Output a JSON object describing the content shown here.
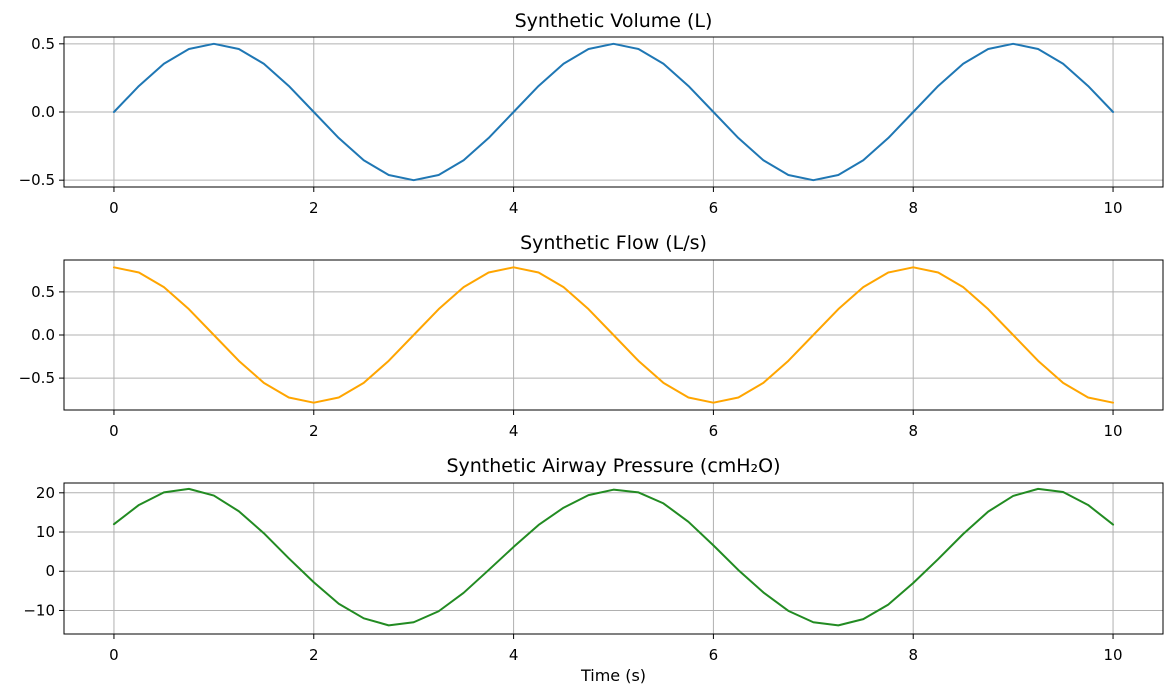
{
  "chart_data": [
    {
      "type": "line",
      "title": "Synthetic Volume (L)",
      "xlabel": "",
      "ylabel": "",
      "xlim": [
        -0.5,
        10.5
      ],
      "ylim": [
        -0.55,
        0.55
      ],
      "xticks": [
        0,
        2,
        4,
        6,
        8,
        10
      ],
      "yticks": [
        -0.5,
        0.0,
        0.5
      ],
      "ytick_labels": [
        "−0.5",
        "0.0",
        "0.5"
      ],
      "grid": true,
      "color": "#1f77b4",
      "series": [
        {
          "x": [
            0,
            0.25,
            0.5,
            0.75,
            1,
            1.25,
            1.5,
            1.75,
            2,
            2.25,
            2.5,
            2.75,
            3,
            3.25,
            3.5,
            3.75,
            4,
            4.25,
            4.5,
            4.75,
            5,
            5.25,
            5.5,
            5.75,
            6,
            6.25,
            6.5,
            6.75,
            7,
            7.25,
            7.5,
            7.75,
            8,
            8.25,
            8.5,
            8.75,
            9,
            9.25,
            9.5,
            9.75,
            10
          ],
          "y": [
            0.0,
            0.191,
            0.354,
            0.462,
            0.5,
            0.462,
            0.354,
            0.191,
            0.0,
            -0.191,
            -0.354,
            -0.462,
            -0.5,
            -0.462,
            -0.354,
            -0.191,
            0.0,
            0.191,
            0.354,
            0.462,
            0.5,
            0.462,
            0.354,
            0.191,
            0.0,
            -0.191,
            -0.354,
            -0.462,
            -0.5,
            -0.462,
            -0.354,
            -0.191,
            0.0,
            0.191,
            0.354,
            0.462,
            0.5,
            0.462,
            0.354,
            0.191,
            0.0
          ]
        }
      ]
    },
    {
      "type": "line",
      "title": "Synthetic Flow (L/s)",
      "xlabel": "",
      "ylabel": "",
      "xlim": [
        -0.5,
        10.5
      ],
      "ylim": [
        -0.87,
        0.87
      ],
      "xticks": [
        0,
        2,
        4,
        6,
        8,
        10
      ],
      "yticks": [
        -0.5,
        0.0,
        0.5
      ],
      "ytick_labels": [
        "−0.5",
        "0.0",
        "0.5"
      ],
      "grid": true,
      "color": "#ffa500",
      "series": [
        {
          "x": [
            0,
            0.25,
            0.5,
            0.75,
            1,
            1.25,
            1.5,
            1.75,
            2,
            2.25,
            2.5,
            2.75,
            3,
            3.25,
            3.5,
            3.75,
            4,
            4.25,
            4.5,
            4.75,
            5,
            5.25,
            5.5,
            5.75,
            6,
            6.25,
            6.5,
            6.75,
            7,
            7.25,
            7.5,
            7.75,
            8,
            8.25,
            8.5,
            8.75,
            9,
            9.25,
            9.5,
            9.75,
            10
          ],
          "y": [
            0.785,
            0.725,
            0.555,
            0.3,
            0.0,
            -0.3,
            -0.555,
            -0.725,
            -0.785,
            -0.725,
            -0.555,
            -0.3,
            0.0,
            0.3,
            0.555,
            0.725,
            0.785,
            0.725,
            0.555,
            0.3,
            0.0,
            -0.3,
            -0.555,
            -0.725,
            -0.785,
            -0.725,
            -0.555,
            -0.3,
            0.0,
            0.3,
            0.555,
            0.725,
            0.785,
            0.725,
            0.555,
            0.3,
            0.0,
            -0.3,
            -0.555,
            -0.725,
            -0.785
          ]
        }
      ]
    },
    {
      "type": "line",
      "title": "Synthetic Airway Pressure (cmH₂O)",
      "xlabel": "Time (s)",
      "ylabel": "",
      "xlim": [
        -0.5,
        10.5
      ],
      "ylim": [
        -16,
        22.5
      ],
      "xticks": [
        0,
        2,
        4,
        6,
        8,
        10
      ],
      "yticks": [
        -10,
        0,
        10,
        20
      ],
      "ytick_labels": [
        "−10",
        "0",
        "10",
        "20"
      ],
      "grid": true,
      "color": "#228b22",
      "series": [
        {
          "x": [
            0,
            0.25,
            0.5,
            0.75,
            1,
            1.25,
            1.5,
            1.75,
            2,
            2.25,
            2.5,
            2.75,
            3,
            3.25,
            3.5,
            3.75,
            4,
            4.25,
            4.5,
            4.75,
            5,
            5.25,
            5.5,
            5.75,
            6,
            6.25,
            6.5,
            6.75,
            7,
            7.25,
            7.5,
            7.75,
            8,
            8.25,
            8.5,
            8.75,
            9,
            9.25,
            9.5,
            9.75,
            10
          ],
          "y": [
            12.0,
            16.9,
            20.1,
            21.0,
            19.3,
            15.3,
            9.7,
            3.3,
            -2.8,
            -8.3,
            -12.0,
            -13.8,
            -13.0,
            -10.2,
            -5.5,
            0.3,
            6.2,
            11.8,
            16.2,
            19.4,
            20.8,
            20.1,
            17.3,
            12.6,
            6.6,
            0.3,
            -5.4,
            -10.1,
            -13.0,
            -13.8,
            -12.2,
            -8.5,
            -3.0,
            3.1,
            9.5,
            15.2,
            19.2,
            21.0,
            20.2,
            16.9,
            11.9
          ]
        }
      ]
    }
  ]
}
